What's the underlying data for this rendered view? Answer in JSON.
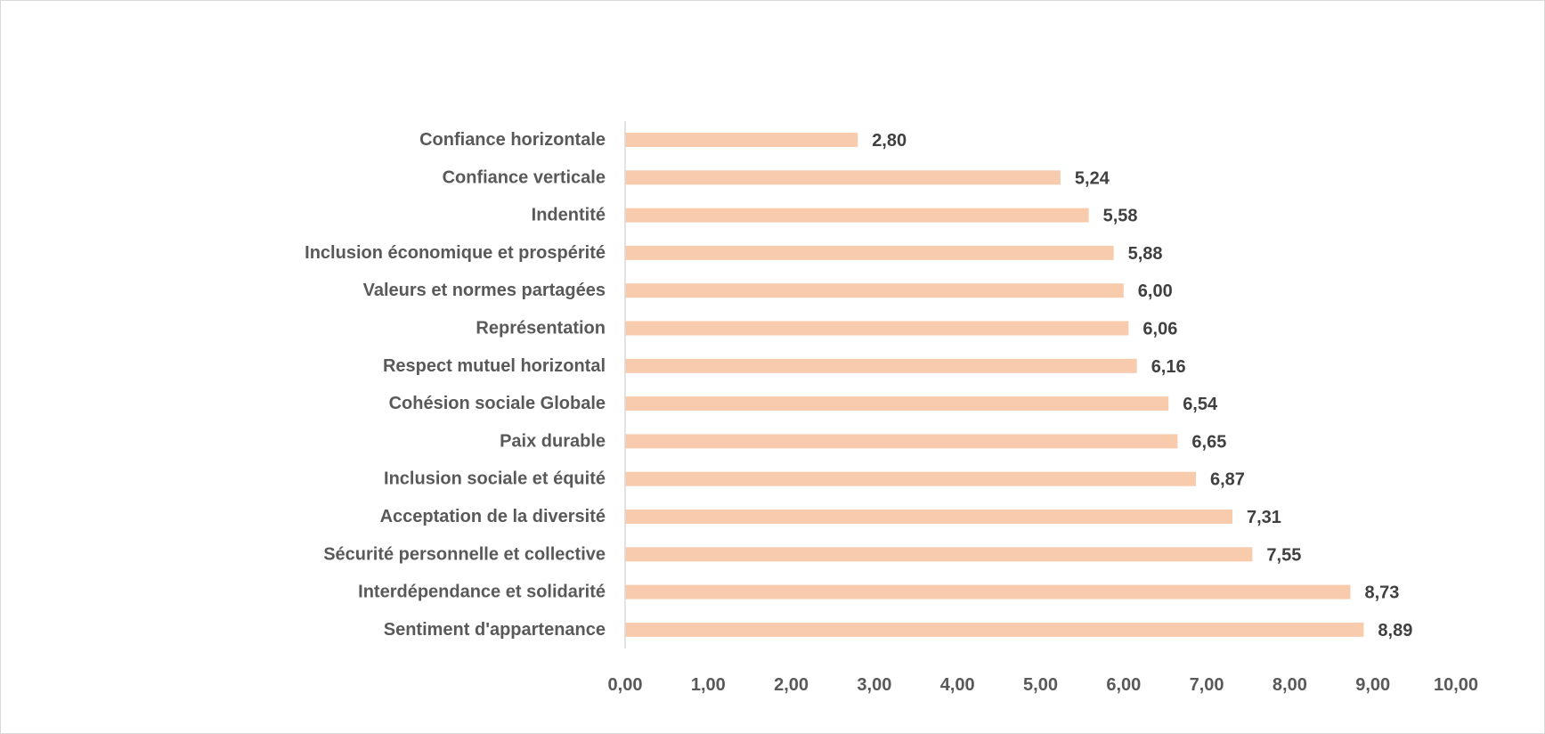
{
  "chart_data": {
    "type": "bar",
    "orientation": "horizontal",
    "categories": [
      "Confiance horizontale",
      "Confiance verticale",
      "Indentité",
      "Inclusion économique et prospérité",
      "Valeurs et normes partagées",
      "Représentation",
      "Respect mutuel horizontal",
      "Cohésion sociale Globale",
      "Paix durable",
      "Inclusion sociale et équité",
      "Acceptation de la diversité",
      "Sécurité personnelle et collective",
      "Interdépendance et solidarité",
      "Sentiment d'appartenance"
    ],
    "values": [
      2.8,
      5.24,
      5.58,
      5.88,
      6.0,
      6.06,
      6.16,
      6.54,
      6.65,
      6.87,
      7.31,
      7.55,
      8.73,
      8.89
    ],
    "value_labels": [
      "2,80",
      "5,24",
      "5,58",
      "5,88",
      "6,00",
      "6,06",
      "6,16",
      "6,54",
      "6,65",
      "6,87",
      "7,31",
      "7,55",
      "8,73",
      "8,89"
    ],
    "x_ticks": [
      0,
      1,
      2,
      3,
      4,
      5,
      6,
      7,
      8,
      9,
      10
    ],
    "x_tick_labels": [
      "0,00",
      "1,00",
      "2,00",
      "3,00",
      "4,00",
      "5,00",
      "6,00",
      "7,00",
      "8,00",
      "9,00",
      "10,00"
    ],
    "xlim": [
      0,
      10
    ],
    "title": "",
    "xlabel": "",
    "ylabel": "",
    "grid": false,
    "legend": "none",
    "bar_color": "#F8CBAD",
    "text_color": "#595959",
    "value_label_color": "#404040",
    "axis_color": "#d9d9d9"
  }
}
